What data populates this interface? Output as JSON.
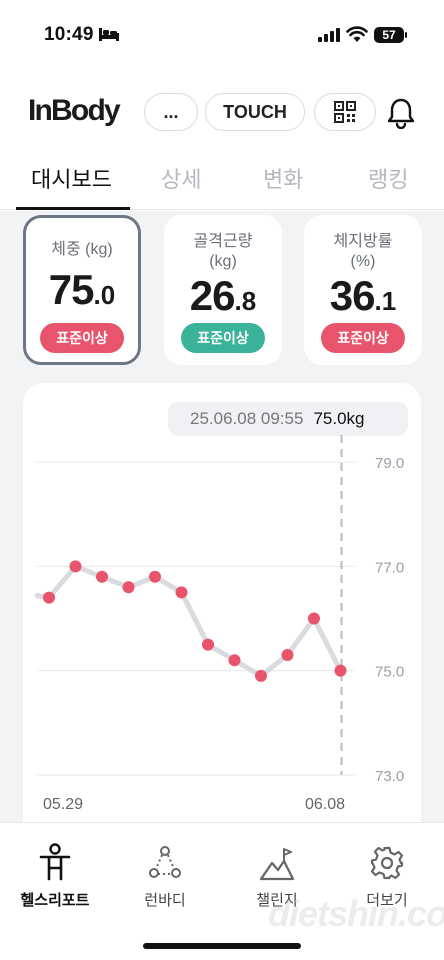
{
  "status": {
    "time": "10:49",
    "battery": "57"
  },
  "header": {
    "logo": "InBody",
    "more_label": "...",
    "touch_label": "TOUCH"
  },
  "tabs": [
    {
      "label": "대시보드"
    },
    {
      "label": "상세"
    },
    {
      "label": "변화"
    },
    {
      "label": "랭킹"
    }
  ],
  "cards": [
    {
      "label_line1": "체중 (kg)",
      "label_line2": "",
      "int": "75",
      "dec": ".0",
      "badge": "표준이상",
      "badge_color": "#e8546b"
    },
    {
      "label_line1": "골격근량",
      "label_line2": "(kg)",
      "int": "26",
      "dec": ".8",
      "badge": "표준이상",
      "badge_color": "#3bb39a"
    },
    {
      "label_line1": "체지방률",
      "label_line2": "(%)",
      "int": "36",
      "dec": ".1",
      "badge": "표준이상",
      "badge_color": "#e8546b"
    }
  ],
  "chart": {
    "tooltip_date": "25.06.08 09:55",
    "tooltip_value": "75.0kg"
  },
  "chart_data": {
    "type": "line",
    "x_start_label": "05.29",
    "x_end_label": "06.08",
    "yticks": [
      "79.0",
      "77.0",
      "75.0",
      "73.0"
    ],
    "ylim": [
      73,
      79
    ],
    "values": [
      76.4,
      77.0,
      76.8,
      76.6,
      76.8,
      76.5,
      75.5,
      75.2,
      74.9,
      75.3,
      76.0,
      75.0
    ],
    "point_color": "#e8546b",
    "line_color": "#d9dbe0"
  },
  "nav": [
    {
      "label": "헬스리포트",
      "icon": "body-icon",
      "active": true
    },
    {
      "label": "런바디",
      "icon": "run-icon",
      "active": false
    },
    {
      "label": "챌린지",
      "icon": "mountain-icon",
      "active": false
    },
    {
      "label": "더보기",
      "icon": "gear-icon",
      "active": false
    }
  ],
  "watermark": "dietshin.com"
}
